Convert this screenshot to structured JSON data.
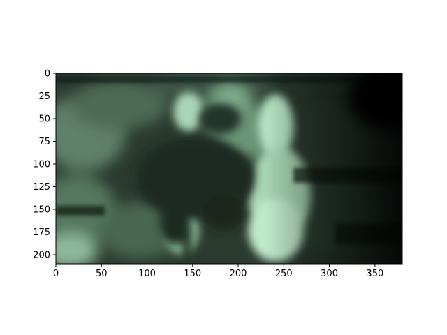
{
  "figure": {
    "background": "#ffffff",
    "axis_color": "#000000",
    "image_palette": {
      "dark": "#050805",
      "shadow": "#1a241c",
      "mid": "#4b6a55",
      "light": "#a9d6b6",
      "highlight": "#c9f0d2"
    }
  },
  "image_axes": {
    "x_range": [
      0,
      380
    ],
    "y_range": [
      0,
      210
    ],
    "x_ticks": [
      {
        "value": 0,
        "label": "0"
      },
      {
        "value": 50,
        "label": "50"
      },
      {
        "value": 100,
        "label": "100"
      },
      {
        "value": 150,
        "label": "150"
      },
      {
        "value": 200,
        "label": "200"
      },
      {
        "value": 250,
        "label": "250"
      },
      {
        "value": 300,
        "label": "300"
      },
      {
        "value": 350,
        "label": "350"
      }
    ],
    "y_ticks": [
      {
        "value": 0,
        "label": "0"
      },
      {
        "value": 25,
        "label": "25"
      },
      {
        "value": 50,
        "label": "50"
      },
      {
        "value": 75,
        "label": "75"
      },
      {
        "value": 100,
        "label": "100"
      },
      {
        "value": 125,
        "label": "125"
      },
      {
        "value": 150,
        "label": "150"
      },
      {
        "value": 175,
        "label": "175"
      },
      {
        "value": 200,
        "label": "200"
      }
    ]
  }
}
